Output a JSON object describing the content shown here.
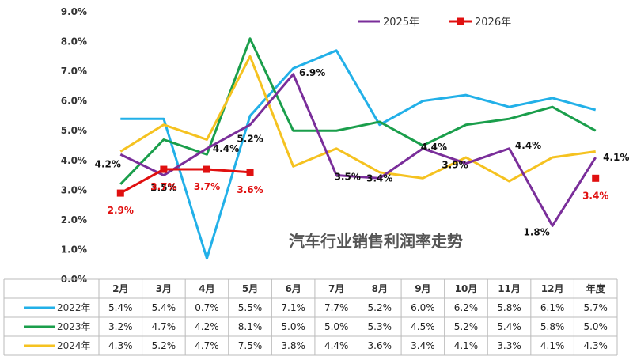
{
  "chart_data": {
    "type": "line",
    "title": "汽车行业销售利润率走势",
    "categories": [
      "2月",
      "3月",
      "4月",
      "5月",
      "6月",
      "7月",
      "8月",
      "9月",
      "10月",
      "11月",
      "12月",
      "年度"
    ],
    "y_ticks": [
      "0.0%",
      "1.0%",
      "2.0%",
      "3.0%",
      "4.0%",
      "5.0%",
      "6.0%",
      "7.0%",
      "8.0%",
      "9.0%"
    ],
    "ylim": [
      0,
      9
    ],
    "series": [
      {
        "name": "2022年",
        "color": "#22b0e8",
        "values": [
          5.4,
          5.4,
          0.7,
          5.5,
          7.1,
          7.7,
          5.2,
          6.0,
          6.2,
          5.8,
          6.1,
          5.7
        ],
        "table": [
          "5.4%",
          "5.4%",
          "0.7%",
          "5.5%",
          "7.1%",
          "7.7%",
          "5.2%",
          "6.0%",
          "6.2%",
          "5.8%",
          "6.1%",
          "5.7%"
        ]
      },
      {
        "name": "2023年",
        "color": "#1a9e4b",
        "values": [
          3.2,
          4.7,
          4.2,
          8.1,
          5.0,
          5.0,
          5.3,
          4.5,
          5.2,
          5.4,
          5.8,
          5.0
        ],
        "table": [
          "3.2%",
          "4.7%",
          "4.2%",
          "8.1%",
          "5.0%",
          "5.0%",
          "5.3%",
          "4.5%",
          "5.2%",
          "5.4%",
          "5.8%",
          "5.0%"
        ]
      },
      {
        "name": "2024年",
        "color": "#f5c220",
        "values": [
          4.3,
          5.2,
          4.7,
          7.5,
          3.8,
          4.4,
          3.6,
          3.4,
          4.1,
          3.3,
          4.1,
          4.3
        ],
        "table": [
          "4.3%",
          "5.2%",
          "4.7%",
          "7.5%",
          "3.8%",
          "4.4%",
          "3.6%",
          "3.4%",
          "4.1%",
          "3.3%",
          "4.1%",
          "4.3%"
        ]
      },
      {
        "name": "2025年",
        "color": "#7a2e9a",
        "values": [
          4.2,
          3.5,
          4.4,
          5.2,
          6.9,
          3.5,
          3.4,
          4.4,
          3.9,
          4.4,
          1.8,
          4.1
        ],
        "labels": [
          "4.2%",
          "3.5%",
          "4.4%",
          "5.2%",
          "6.9%",
          "3.5%",
          "3.4%",
          "4.4%",
          "3.9%",
          "4.4%",
          "1.8%",
          "4.1%"
        ]
      },
      {
        "name": "2026年",
        "color": "#e01010",
        "values": [
          2.9,
          3.7,
          3.7,
          3.6,
          null,
          null,
          null,
          null,
          null,
          null,
          null,
          3.4
        ],
        "labels": [
          "2.9%",
          "3.7%",
          "3.7%",
          "3.6%",
          null,
          null,
          null,
          null,
          null,
          null,
          null,
          "3.4%"
        ]
      }
    ]
  }
}
